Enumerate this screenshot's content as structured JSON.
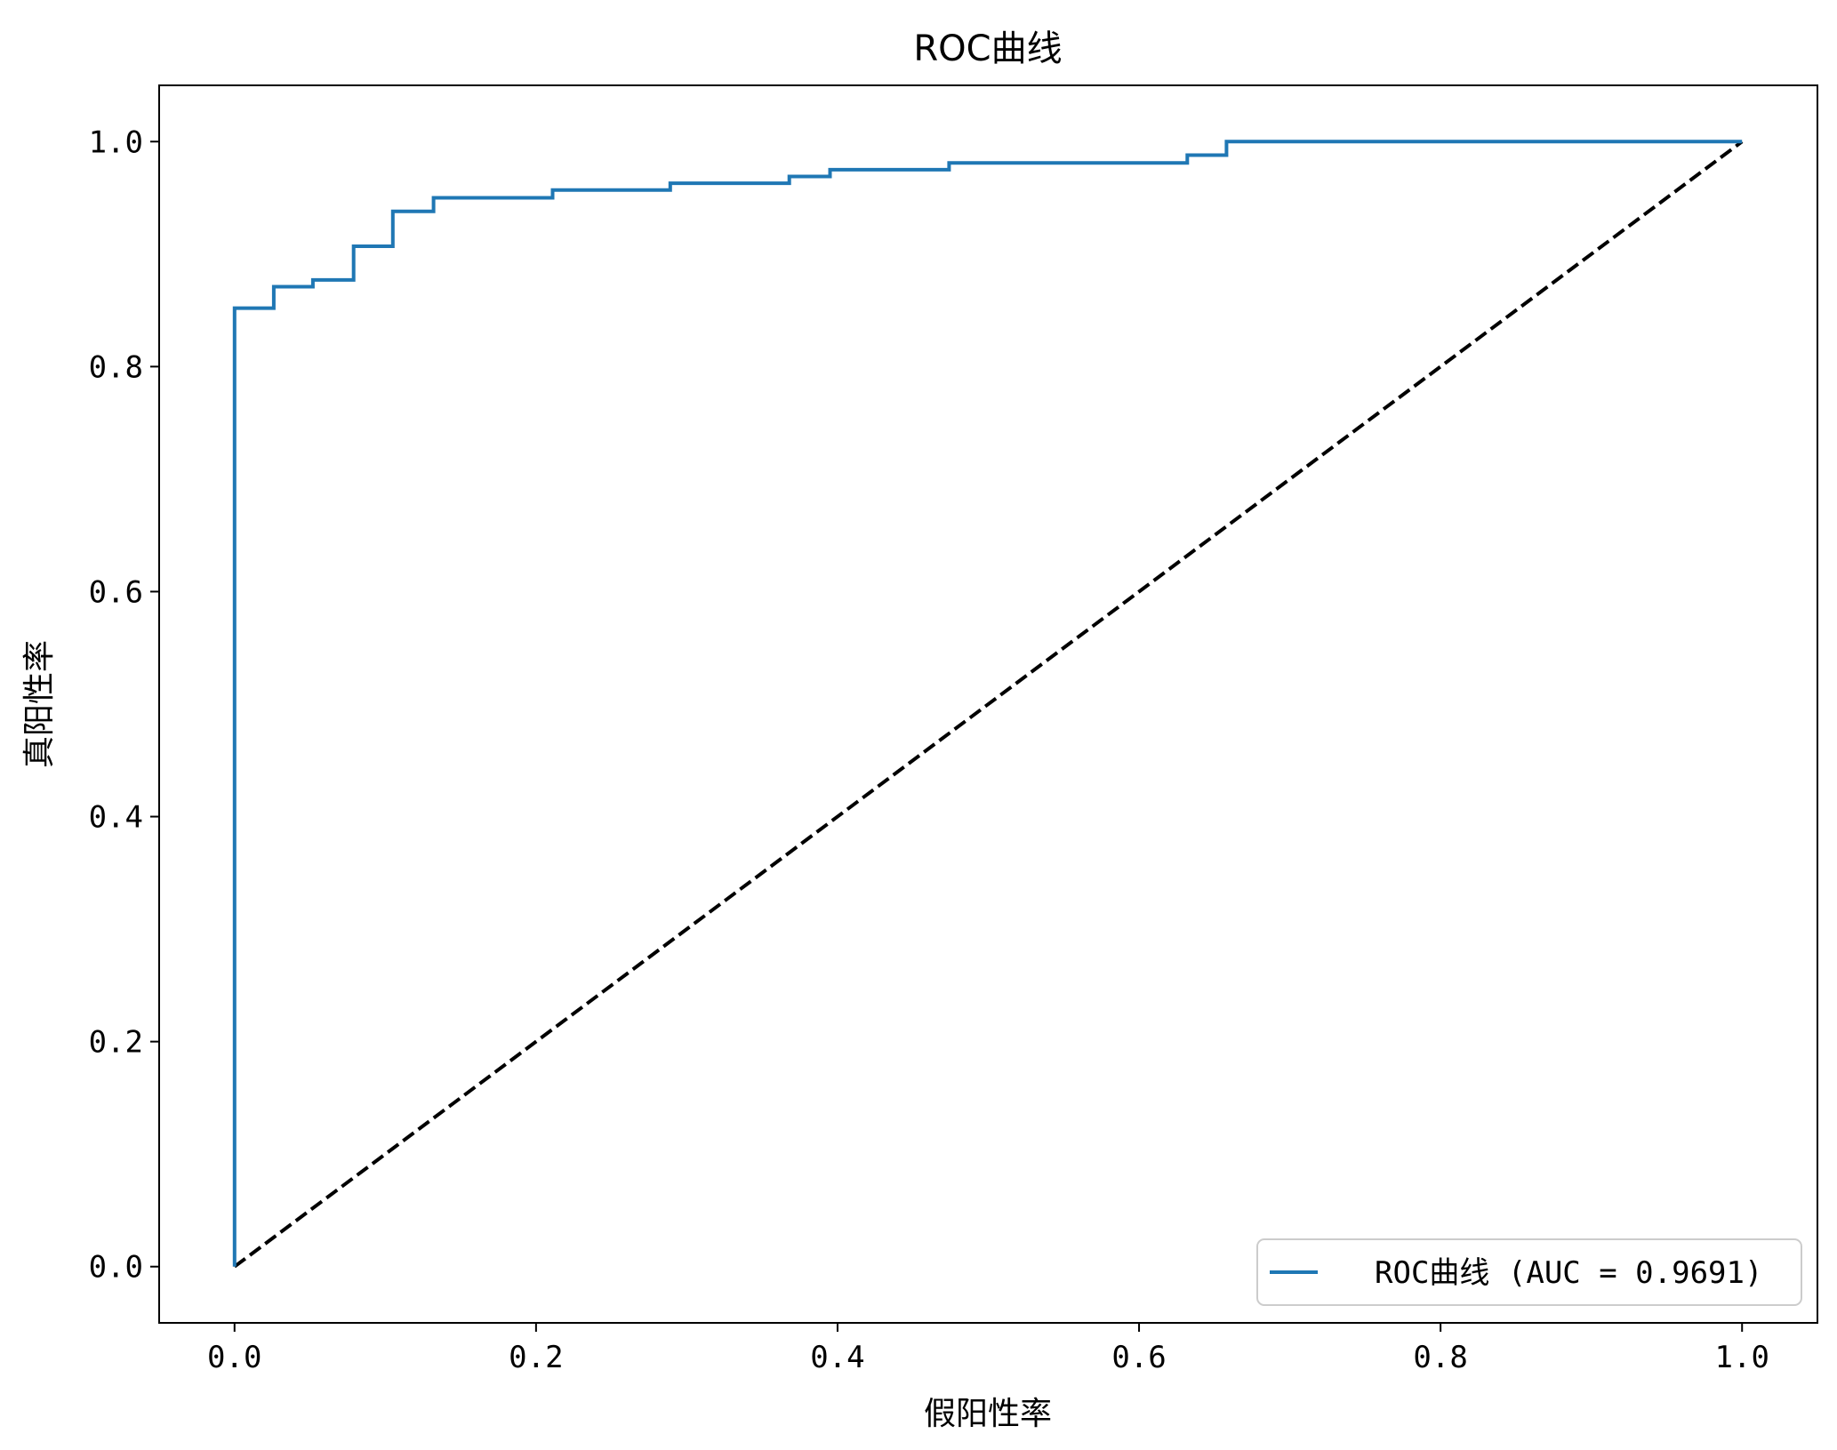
{
  "chart_data": {
    "type": "line",
    "title": "ROC曲线",
    "xlabel": "假阳性率",
    "ylabel": "真阳性率",
    "xlim": [
      -0.05,
      1.05
    ],
    "ylim": [
      -0.05,
      1.05
    ],
    "x_ticks": [
      "0.0",
      "0.2",
      "0.4",
      "0.6",
      "0.8",
      "1.0"
    ],
    "y_ticks": [
      "0.0",
      "0.2",
      "0.4",
      "0.6",
      "0.8",
      "1.0"
    ],
    "grid": false,
    "legend_position": "lower-right",
    "series": [
      {
        "name": "ROC曲线 (AUC = 0.9691)",
        "color": "#1f77b4",
        "style": "solid",
        "x": [
          0.0,
          0.0,
          0.026,
          0.026,
          0.052,
          0.052,
          0.079,
          0.079,
          0.105,
          0.105,
          0.132,
          0.132,
          0.211,
          0.211,
          0.289,
          0.289,
          0.368,
          0.368,
          0.395,
          0.395,
          0.474,
          0.474,
          0.632,
          0.632,
          0.658,
          0.658,
          1.0
        ],
        "y": [
          0.0,
          0.852,
          0.852,
          0.871,
          0.871,
          0.877,
          0.877,
          0.907,
          0.907,
          0.938,
          0.938,
          0.95,
          0.95,
          0.957,
          0.957,
          0.963,
          0.963,
          0.969,
          0.969,
          0.975,
          0.975,
          0.981,
          0.981,
          0.988,
          0.988,
          1.0,
          1.0
        ]
      },
      {
        "name": "",
        "color": "#000000",
        "style": "dashed",
        "x": [
          0.0,
          1.0
        ],
        "y": [
          0.0,
          1.0
        ]
      }
    ]
  }
}
